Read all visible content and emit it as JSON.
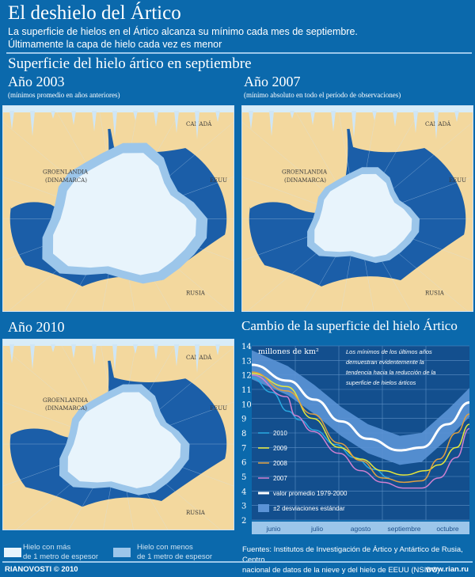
{
  "header": {
    "title": "El deshielo del  Ártico",
    "subtitle_line1": "La superficie de hielos en el Ártico alcanza su mínimo cada mes de septiembre.",
    "subtitle_line2": "Últimamente la capa de hielo cada vez es menor"
  },
  "maps_section": {
    "title": "Superficie del hielo ártico en septiembre",
    "maps": [
      {
        "year": "Año 2003",
        "note": "(mínimos promedio en años anteriores)",
        "ice_extent": "large"
      },
      {
        "year": "Año 2007",
        "note": "(mínimo absoluto en todo el período de observaciones)",
        "ice_extent": "small"
      },
      {
        "year": "Año 2010",
        "note": "",
        "ice_extent": "medium"
      }
    ],
    "labels": {
      "greenland_1": "GROENLANDIA",
      "greenland_2": "(DINAMARCA)",
      "canada": "CANADÁ",
      "usa": "EEUU",
      "russia": "RUSIA"
    }
  },
  "map_legend": {
    "thick_ice_1": "Hielo con más",
    "thick_ice_2": "de 1 metro de espesor",
    "thin_ice_1": "Hielo con menos",
    "thin_ice_2": "de 1 metro de espesor"
  },
  "colors": {
    "background": "#0b69ac",
    "sea": "#1b5ea8",
    "land": "#f3d89e",
    "thick_ice": "#e8f4fc",
    "thin_ice": "#9cc6ea"
  },
  "chart_data": {
    "type": "line",
    "title": "Cambio de la superficie del hielo Ártico",
    "ylabel": "millones de km²",
    "annotation": "Los mínimos de los últimos años demuestran evidentemente la tendencia hacia la reducción de la superficie de hielos árticos",
    "categories": [
      "junio",
      "julio",
      "agosto",
      "septiembre",
      "octubre"
    ],
    "ylim": [
      2,
      14
    ],
    "yticks": [
      "14",
      "13",
      "12",
      "11",
      "10",
      "9",
      "8",
      "7",
      "6",
      "5",
      "4",
      "3",
      "2"
    ],
    "grid": true,
    "legend_position": "left",
    "series": [
      {
        "name": "2010",
        "color": "#2aa8e0",
        "x": [
          0,
          0.46,
          0.83,
          1.1,
          1.44,
          1.93,
          2.36,
          2.8,
          3.16
        ],
        "y": [
          11.8,
          10.8,
          9.5,
          8.9,
          8.2,
          7.2,
          6.3,
          5.5,
          4.9
        ]
      },
      {
        "name": "2009",
        "color": "#e8e83a",
        "x": [
          0,
          0.8,
          1.4,
          2,
          2.5,
          3,
          3.5,
          4,
          4.3,
          4.7,
          5
        ],
        "y": [
          12.1,
          11.2,
          9.0,
          7.0,
          6.2,
          5.4,
          5.1,
          5.4,
          5.8,
          7.0,
          8.6
        ]
      },
      {
        "name": "2008",
        "color": "#e0a040",
        "x": [
          0,
          0.8,
          1.4,
          2,
          2.5,
          3,
          3.5,
          3.9,
          4.3,
          4.7,
          5
        ],
        "y": [
          12.2,
          10.9,
          9.3,
          7.3,
          6.1,
          4.9,
          4.6,
          4.7,
          6.2,
          8.0,
          9.3
        ]
      },
      {
        "name": "2007",
        "color": "#d080d0",
        "x": [
          0,
          0.8,
          1,
          1.4,
          2,
          2.5,
          3,
          3.5,
          3.9,
          4.3,
          4.7,
          5
        ],
        "y": [
          12.0,
          10.5,
          9.2,
          8.1,
          6.6,
          5.4,
          4.6,
          4.2,
          4.2,
          4.9,
          6.3,
          8.3
        ]
      },
      {
        "name": "valor promedio 1979-2000",
        "color": "#ffffff",
        "x": [
          0,
          0.83,
          1.44,
          2.05,
          2.67,
          3.4,
          3.9,
          4.5,
          5
        ],
        "y": [
          12.7,
          11.6,
          10.3,
          8.8,
          7.6,
          6.8,
          7.0,
          8.6,
          10.1
        ]
      }
    ],
    "band": {
      "name": "±2 desviaciones estándar",
      "color": "#5b93d6",
      "width": 1.0
    }
  },
  "footer": {
    "sources_1": "Fuentes: Institutos de Investigación de Ártico y Antártico de Rusia, Centro",
    "sources_2": "nacional de datos de la nieve y del hielo de EEUU (NSIDC)",
    "brand": "RIANOVOSTI © 2010",
    "url": "www.rian.ru"
  }
}
